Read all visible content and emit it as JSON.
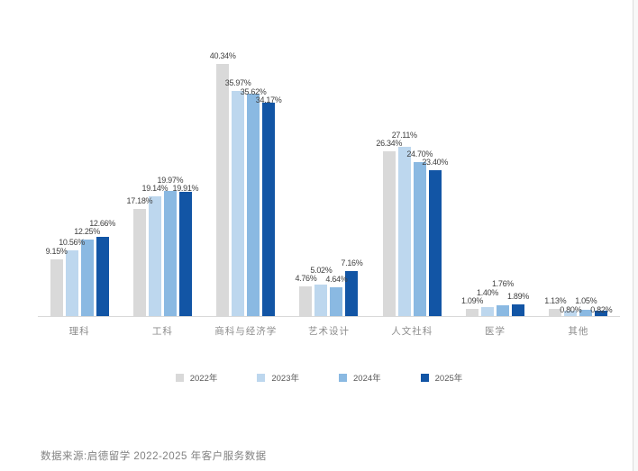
{
  "chart_data": {
    "type": "bar",
    "title": "",
    "xlabel": "",
    "ylabel": "",
    "value_suffix": "%",
    "ylim": [
      0,
      42
    ],
    "grid": false,
    "legend_position": "bottom",
    "categories": [
      "理科",
      "工科",
      "商科与经济学",
      "艺术设计",
      "人文社科",
      "医学",
      "其他"
    ],
    "series": [
      {
        "name": "2022年",
        "color": "#d9d9d9",
        "values": [
          9.15,
          17.18,
          40.34,
          4.76,
          26.34,
          1.09,
          1.13
        ],
        "labels": [
          "9.15%",
          "17.18%",
          "40.34%",
          "4.76%",
          "26.34%",
          "1.09%",
          "1.13%"
        ]
      },
      {
        "name": "2023年",
        "color": "#bdd7ee",
        "values": [
          10.56,
          19.14,
          35.97,
          5.02,
          27.11,
          1.4,
          0.8
        ],
        "labels": [
          "10.56%",
          "19.14%",
          "35.97%",
          "5.02%",
          "27.11%",
          "1.40%",
          "0.80%"
        ]
      },
      {
        "name": "2024年",
        "color": "#8ab9e2",
        "values": [
          12.25,
          19.97,
          35.62,
          4.64,
          24.7,
          1.76,
          1.05
        ],
        "labels": [
          "12.25%",
          "19.97%",
          "35.62%",
          "4.64%",
          "24.70%",
          "1.76%",
          "1.05%"
        ]
      },
      {
        "name": "2025年",
        "color": "#1255a5",
        "values": [
          12.66,
          19.91,
          34.17,
          7.16,
          23.4,
          1.89,
          0.82
        ],
        "labels": [
          "12.66%",
          "19.91%",
          "34.17%",
          "7.16%",
          "23.40%",
          "1.89%",
          "0.82%"
        ]
      }
    ]
  },
  "colors": {
    "axis_line": "#d9d9d9",
    "value_label": "#404040",
    "category_label": "#8c8c8c",
    "legend_label": "#595959",
    "source_text": "#828282"
  },
  "source_note": "数据来源:启德留学 2022-2025 年客户服务数据"
}
